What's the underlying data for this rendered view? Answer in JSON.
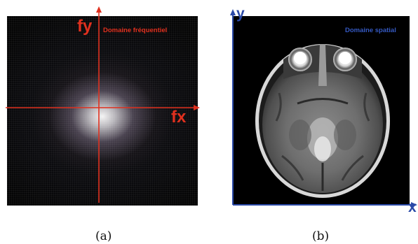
{
  "figure": {
    "panel_a": {
      "x_axis_label": "fx",
      "y_axis_label": "fy",
      "domain_label": "Domaine fréquentiel",
      "caption": "(a)"
    },
    "panel_b": {
      "x_axis_label": "x",
      "y_axis_label": "y",
      "domain_label": "Domaine spatial",
      "caption": "(b)"
    }
  },
  "colors": {
    "frequency_axes": "#e0301e",
    "spatial_axes": "#2b4aa8",
    "background": "#000000"
  }
}
